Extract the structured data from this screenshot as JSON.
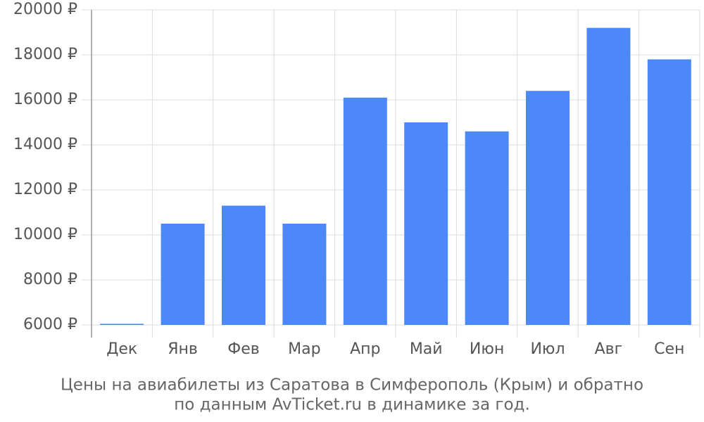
{
  "chart_data": {
    "type": "bar",
    "title": [
      "Цены на авиабилеты из Саратова в Симферополь (Крым) и обратно",
      "по данным AvTicket.ru в динамике за год."
    ],
    "categories": [
      "Дек",
      "Янв",
      "Фев",
      "Мар",
      "Апр",
      "Май",
      "Июн",
      "Июл",
      "Авг",
      "Сен"
    ],
    "values": [
      6050,
      10500,
      11300,
      10500,
      16100,
      15000,
      14600,
      16400,
      19200,
      17800
    ],
    "color": "#4d88f9",
    "ylim": [
      6000,
      20000
    ],
    "yticks": [
      {
        "value": 6000,
        "label": "6000 ₽"
      },
      {
        "value": 8000,
        "label": "8000 ₽"
      },
      {
        "value": 10000,
        "label": "10000 ₽"
      },
      {
        "value": 12000,
        "label": "12000 ₽"
      },
      {
        "value": 14000,
        "label": "14000 ₽"
      },
      {
        "value": 16000,
        "label": "16000 ₽"
      },
      {
        "value": 18000,
        "label": "18000 ₽"
      },
      {
        "value": 20000,
        "label": "20000 ₽"
      }
    ],
    "grid": true
  }
}
